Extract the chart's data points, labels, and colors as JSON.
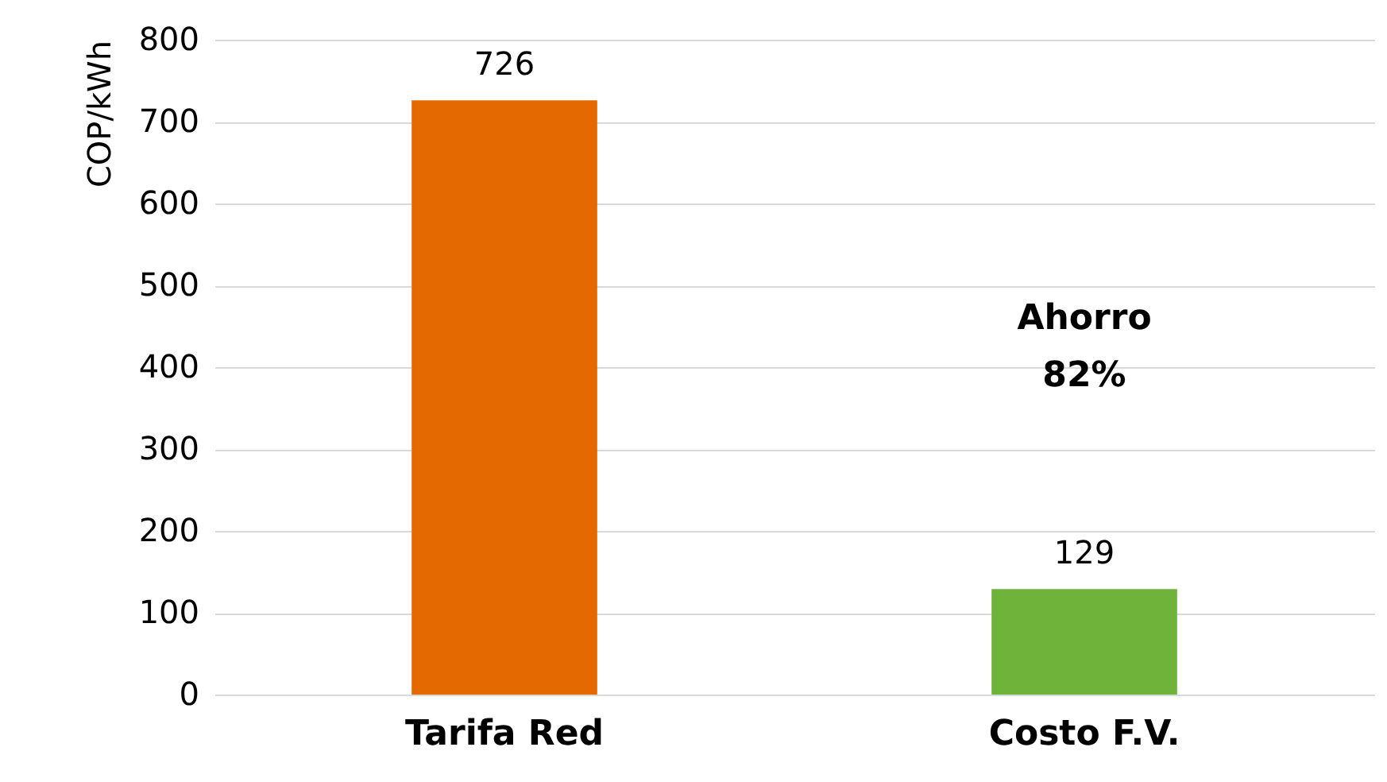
{
  "chart_data": {
    "type": "bar",
    "ylabel": "COP/kWh",
    "categories": [
      "Tarifa Red",
      "Costo F.V."
    ],
    "values": [
      726,
      129
    ],
    "colors": [
      "#e46a00",
      "#6fb33a"
    ],
    "ylim": [
      0,
      800
    ],
    "yticks": [
      0,
      100,
      200,
      300,
      400,
      500,
      600,
      700,
      800
    ],
    "grid": "y",
    "data_labels": true,
    "annotations": [
      "Ahorro 82%"
    ]
  }
}
